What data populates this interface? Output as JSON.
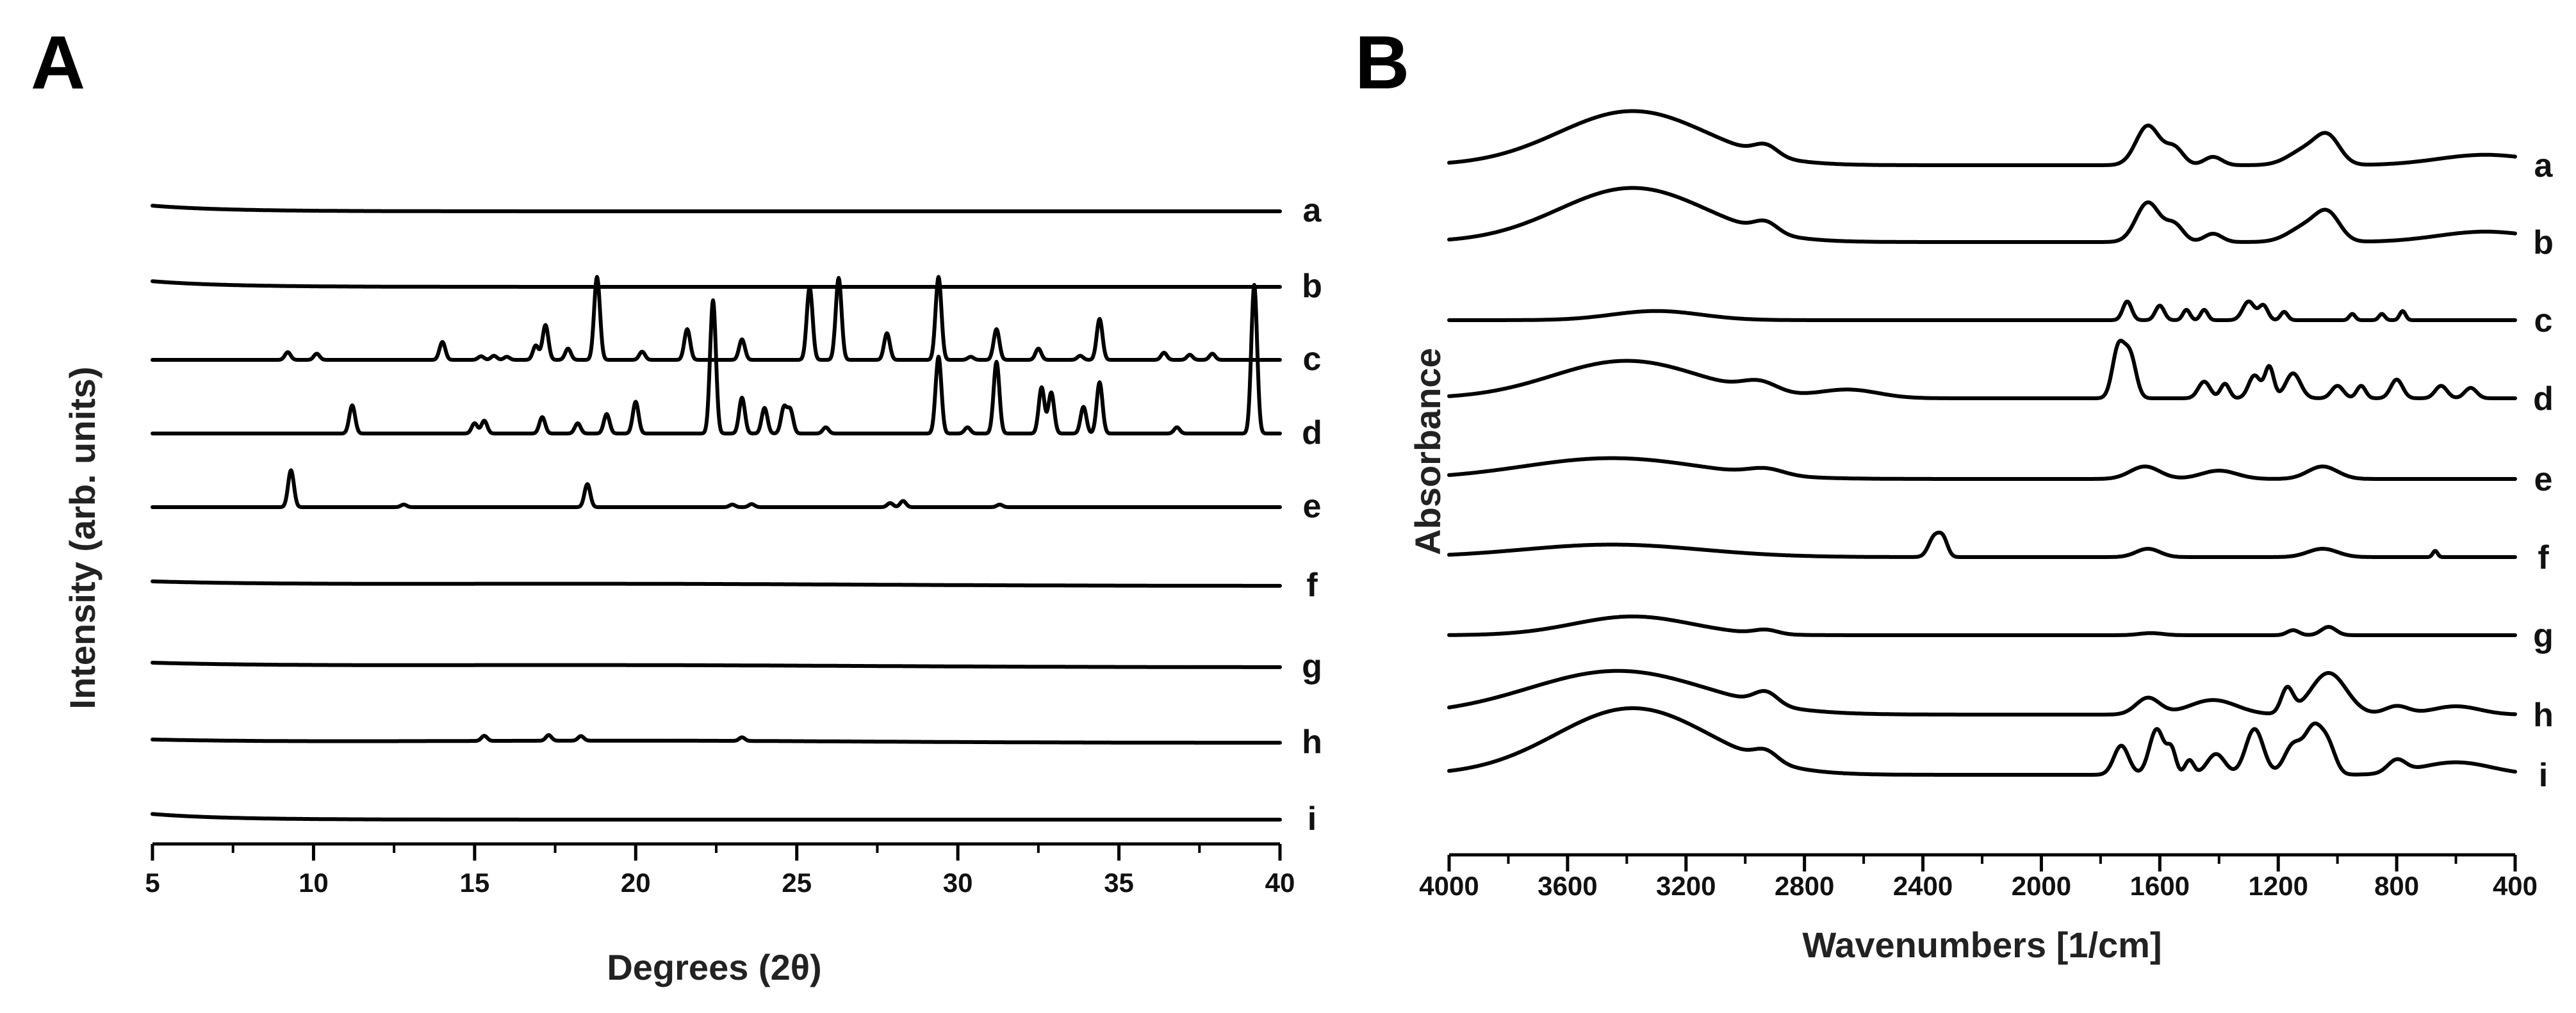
{
  "chart_data": [
    {
      "panel": "A",
      "type": "line",
      "title": "",
      "xlabel": "Degrees (2θ)",
      "ylabel": "Intensity (arb. units)",
      "xlim": [
        5,
        40
      ],
      "xticks": [
        5,
        10,
        15,
        20,
        25,
        30,
        35,
        40
      ],
      "x_minor_step": 2.5,
      "y_axis_shown": false,
      "stacked_offset": true,
      "series": [
        {
          "name": "a",
          "baseline_shape": "decay",
          "peaks": []
        },
        {
          "name": "b",
          "baseline_shape": "decay",
          "peaks": []
        },
        {
          "name": "c",
          "baseline_shape": "flat",
          "peaks": [
            [
              9.2,
              0.15
            ],
            [
              10.1,
              0.12
            ],
            [
              14.0,
              0.35
            ],
            [
              15.2,
              0.07
            ],
            [
              15.6,
              0.08
            ],
            [
              16.0,
              0.06
            ],
            [
              16.9,
              0.28
            ],
            [
              17.2,
              0.68
            ],
            [
              17.9,
              0.22
            ],
            [
              18.8,
              1.62
            ],
            [
              20.2,
              0.16
            ],
            [
              21.6,
              0.6
            ],
            [
              23.3,
              0.4
            ],
            [
              25.4,
              1.42
            ],
            [
              26.3,
              1.6
            ],
            [
              27.8,
              0.52
            ],
            [
              29.4,
              1.62
            ],
            [
              30.4,
              0.06
            ],
            [
              31.2,
              0.6
            ],
            [
              32.5,
              0.22
            ],
            [
              33.8,
              0.08
            ],
            [
              34.4,
              0.8
            ],
            [
              36.4,
              0.14
            ],
            [
              37.2,
              0.1
            ],
            [
              37.9,
              0.12
            ]
          ]
        },
        {
          "name": "d",
          "baseline_shape": "flat",
          "peaks": [
            [
              11.2,
              0.55
            ],
            [
              15.0,
              0.2
            ],
            [
              15.3,
              0.25
            ],
            [
              17.1,
              0.32
            ],
            [
              18.2,
              0.2
            ],
            [
              19.1,
              0.38
            ],
            [
              20.0,
              0.62
            ],
            [
              22.4,
              2.6
            ],
            [
              23.3,
              0.7
            ],
            [
              24.0,
              0.5
            ],
            [
              24.6,
              0.5
            ],
            [
              24.8,
              0.45
            ],
            [
              25.9,
              0.12
            ],
            [
              29.4,
              1.5
            ],
            [
              30.3,
              0.12
            ],
            [
              31.2,
              1.4
            ],
            [
              32.6,
              0.9
            ],
            [
              32.9,
              0.8
            ],
            [
              33.9,
              0.52
            ],
            [
              34.4,
              1.0
            ],
            [
              36.8,
              0.12
            ],
            [
              39.2,
              2.9
            ]
          ]
        },
        {
          "name": "e",
          "baseline_shape": "flat",
          "peaks": [
            [
              9.3,
              0.72
            ],
            [
              12.8,
              0.05
            ],
            [
              18.5,
              0.45
            ],
            [
              23.0,
              0.05
            ],
            [
              23.6,
              0.06
            ],
            [
              27.9,
              0.08
            ],
            [
              28.3,
              0.12
            ],
            [
              31.3,
              0.05
            ]
          ]
        },
        {
          "name": "f",
          "baseline_shape": "hump",
          "peaks": []
        },
        {
          "name": "g",
          "baseline_shape": "hump",
          "peaks": []
        },
        {
          "name": "h",
          "baseline_shape": "broad",
          "peaks": [
            [
              15.3,
              0.1
            ],
            [
              17.3,
              0.11
            ],
            [
              18.3,
              0.09
            ],
            [
              23.3,
              0.07
            ]
          ]
        },
        {
          "name": "i",
          "baseline_shape": "decay",
          "peaks": []
        }
      ]
    },
    {
      "panel": "B",
      "type": "line",
      "title": "",
      "xlabel": "Wavenumbers [1/cm]",
      "ylabel": "Absorbance",
      "xlim": [
        4000,
        400
      ],
      "xticks": [
        4000,
        3600,
        3200,
        2800,
        2400,
        2000,
        1600,
        1200,
        800,
        400
      ],
      "x_minor_step": 200,
      "y_axis_shown": false,
      "stacked_offset": true,
      "series": [
        {
          "name": "a",
          "bands": [
            [
              3380,
              250,
              1.3
            ],
            [
              2930,
              40,
              0.25
            ],
            [
              1640,
              40,
              0.95
            ],
            [
              1550,
              30,
              0.4
            ],
            [
              1420,
              30,
              0.2
            ],
            [
              1100,
              60,
              0.4
            ],
            [
              1030,
              40,
              0.55
            ],
            [
              500,
              160,
              0.25
            ]
          ]
        },
        {
          "name": "b",
          "bands": [
            [
              3380,
              250,
              1.3
            ],
            [
              2930,
              40,
              0.25
            ],
            [
              1640,
              40,
              0.95
            ],
            [
              1550,
              30,
              0.4
            ],
            [
              1420,
              30,
              0.2
            ],
            [
              1100,
              60,
              0.4
            ],
            [
              1030,
              40,
              0.55
            ],
            [
              500,
              160,
              0.25
            ]
          ]
        },
        {
          "name": "c",
          "bands": [
            [
              3300,
              150,
              0.22
            ],
            [
              1710,
              15,
              0.45
            ],
            [
              1600,
              15,
              0.35
            ],
            [
              1510,
              12,
              0.25
            ],
            [
              1450,
              12,
              0.25
            ],
            [
              1300,
              20,
              0.45
            ],
            [
              1250,
              15,
              0.35
            ],
            [
              1180,
              12,
              0.2
            ],
            [
              950,
              10,
              0.15
            ],
            [
              850,
              10,
              0.15
            ],
            [
              780,
              10,
              0.22
            ]
          ]
        },
        {
          "name": "d",
          "bands": [
            [
              3400,
              250,
              0.9
            ],
            [
              2950,
              60,
              0.25
            ],
            [
              2650,
              100,
              0.2
            ],
            [
              1740,
              20,
              1.2
            ],
            [
              1700,
              20,
              1.0
            ],
            [
              1450,
              20,
              0.4
            ],
            [
              1380,
              15,
              0.35
            ],
            [
              1280,
              20,
              0.55
            ],
            [
              1230,
              15,
              0.75
            ],
            [
              1150,
              25,
              0.6
            ],
            [
              1000,
              20,
              0.3
            ],
            [
              920,
              15,
              0.3
            ],
            [
              800,
              20,
              0.45
            ],
            [
              650,
              20,
              0.3
            ],
            [
              550,
              20,
              0.25
            ]
          ]
        },
        {
          "name": "e",
          "bands": [
            [
              3450,
              300,
              0.5
            ],
            [
              2930,
              60,
              0.15
            ],
            [
              1650,
              50,
              0.3
            ],
            [
              1400,
              60,
              0.2
            ],
            [
              1050,
              50,
              0.3
            ]
          ]
        },
        {
          "name": "f",
          "bands": [
            [
              3450,
              300,
              0.3
            ],
            [
              2360,
              20,
              0.5
            ],
            [
              2330,
              15,
              0.35
            ],
            [
              1640,
              40,
              0.2
            ],
            [
              1050,
              50,
              0.2
            ],
            [
              670,
              8,
              0.15
            ]
          ]
        },
        {
          "name": "g",
          "bands": [
            [
              3380,
              200,
              0.45
            ],
            [
              2930,
              40,
              0.1
            ],
            [
              1630,
              40,
              0.05
            ],
            [
              1150,
              20,
              0.12
            ],
            [
              1030,
              25,
              0.2
            ]
          ]
        },
        {
          "name": "h",
          "bands": [
            [
              3430,
              300,
              1.05
            ],
            [
              2930,
              40,
              0.3
            ],
            [
              1640,
              40,
              0.4
            ],
            [
              1420,
              80,
              0.35
            ],
            [
              1170,
              20,
              0.6
            ],
            [
              1030,
              60,
              1.0
            ],
            [
              800,
              40,
              0.2
            ],
            [
              600,
              80,
              0.2
            ]
          ]
        },
        {
          "name": "i",
          "bands": [
            [
              3380,
              260,
              1.6
            ],
            [
              2930,
              40,
              0.25
            ],
            [
              1730,
              25,
              0.7
            ],
            [
              1610,
              25,
              1.1
            ],
            [
              1560,
              15,
              0.55
            ],
            [
              1500,
              15,
              0.35
            ],
            [
              1410,
              30,
              0.5
            ],
            [
              1280,
              30,
              1.1
            ],
            [
              1150,
              30,
              0.7
            ],
            [
              1080,
              30,
              1.1
            ],
            [
              1030,
              25,
              0.6
            ],
            [
              800,
              30,
              0.3
            ],
            [
              600,
              120,
              0.3
            ]
          ]
        }
      ]
    }
  ]
}
